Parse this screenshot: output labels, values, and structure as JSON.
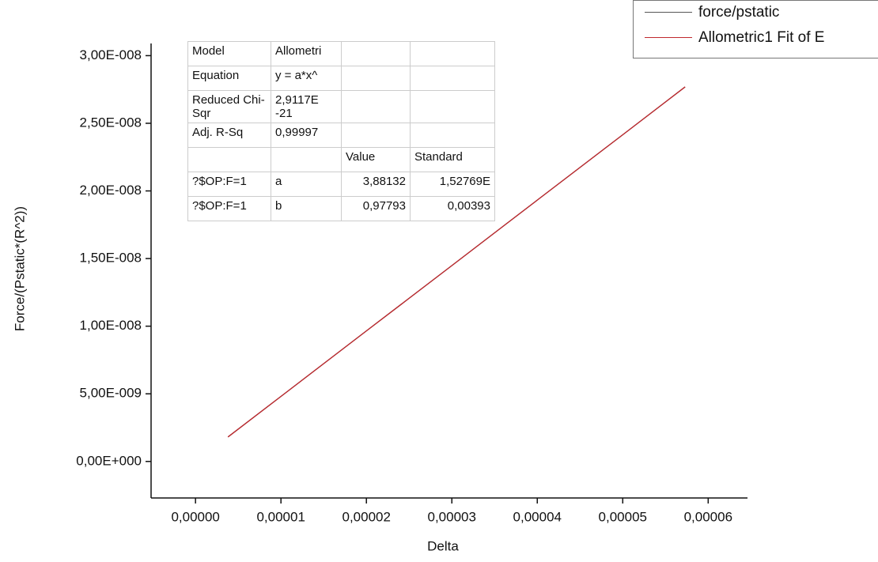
{
  "chart_data": {
    "type": "line",
    "x_label": "Delta",
    "y_label": "Force/(Pstatic*(R^2))",
    "x": [
      3.8e-06,
      1e-05,
      2e-05,
      3e-05,
      4e-05,
      5e-05,
      5.73e-05
    ],
    "series": [
      {
        "name": "force/pstatic",
        "color": "#555555",
        "values": [
          1.81e-09,
          4.81e-09,
          9.65e-09,
          1.448e-08,
          1.932e-08,
          2.415e-08,
          2.769e-08
        ]
      },
      {
        "name": "Allometric1 Fit of E",
        "color": "#c0282d",
        "values": [
          1.81e-09,
          4.81e-09,
          9.65e-09,
          1.448e-08,
          1.932e-08,
          2.415e-08,
          2.769e-08
        ]
      }
    ],
    "xlim": [
      -5.2e-06,
      6.46e-05
    ],
    "ylim": [
      -2.7e-09,
      3.09e-08
    ],
    "xticks": [
      {
        "value": 0,
        "label": "0,00000"
      },
      {
        "value": 1e-05,
        "label": "0,00001"
      },
      {
        "value": 2e-05,
        "label": "0,00002"
      },
      {
        "value": 3e-05,
        "label": "0,00003"
      },
      {
        "value": 4e-05,
        "label": "0,00004"
      },
      {
        "value": 5e-05,
        "label": "0,00005"
      },
      {
        "value": 6e-05,
        "label": "0,00006"
      }
    ],
    "yticks": [
      {
        "value": 0,
        "label": "0,00E+000"
      },
      {
        "value": 5e-09,
        "label": "5,00E-009"
      },
      {
        "value": 1e-08,
        "label": "1,00E-008"
      },
      {
        "value": 1.5e-08,
        "label": "1,50E-008"
      },
      {
        "value": 2e-08,
        "label": "2,00E-008"
      },
      {
        "value": 2.5e-08,
        "label": "2,50E-008"
      },
      {
        "value": 3e-08,
        "label": "3,00E-008"
      }
    ],
    "grid": false,
    "legend": "top-right",
    "fit_table": {
      "rows": [
        [
          "Model",
          "Allometri",
          null,
          null
        ],
        [
          "Equation",
          "y = a*x^",
          null,
          null
        ],
        [
          "Reduced Chi-Sqr",
          "2,9117E -21",
          null,
          null
        ],
        [
          "Adj. R-Sq",
          "0,99997",
          null,
          null
        ],
        [
          null,
          null,
          "Value",
          "Standard"
        ],
        [
          "?$OP:F=1",
          "a",
          "3,88132",
          "1,52769E"
        ],
        [
          "?$OP:F=1",
          "b",
          "0,97793",
          "0,00393"
        ]
      ]
    }
  }
}
